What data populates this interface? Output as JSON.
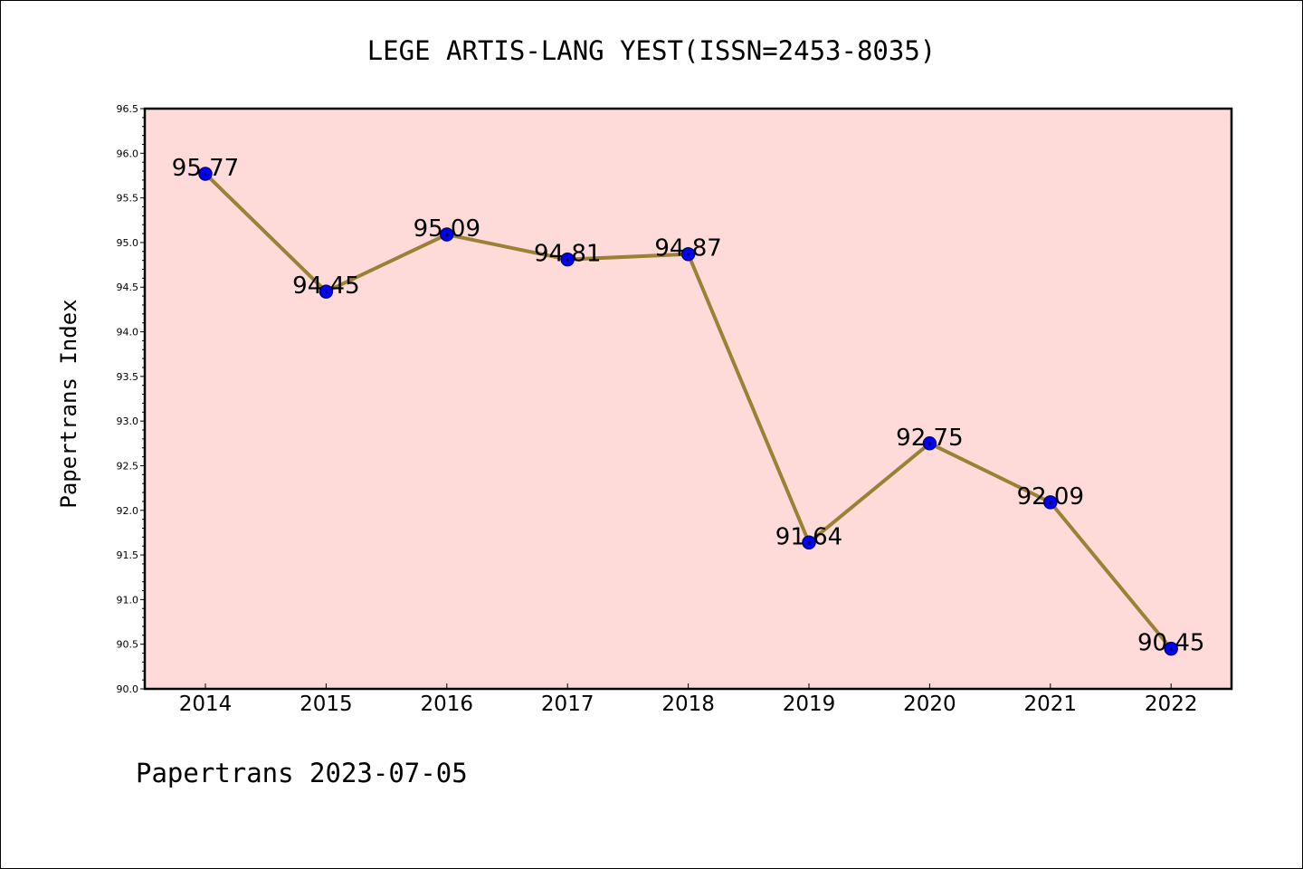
{
  "chart_data": {
    "type": "line",
    "title": "LEGE ARTIS-LANG YEST(ISSN=2453-8035)",
    "xlabel": "",
    "ylabel": "Papertrans Index",
    "categories": [
      "2014",
      "2015",
      "2016",
      "2017",
      "2018",
      "2019",
      "2020",
      "2021",
      "2022"
    ],
    "values": [
      95.77,
      94.45,
      95.09,
      94.81,
      94.87,
      91.64,
      92.75,
      92.09,
      90.45
    ],
    "value_labels": [
      "95.77",
      "94.45",
      "95.09",
      "94.81",
      "94.87",
      "91.64",
      "92.75",
      "92.09",
      "90.45"
    ],
    "ylim": [
      90.0,
      96.5
    ],
    "yticks": [
      "90.0",
      "90.5",
      "91.0",
      "91.5",
      "92.0",
      "92.5",
      "93.0",
      "93.5",
      "94.0",
      "94.5",
      "95.0",
      "95.5",
      "96.0",
      "96.5"
    ],
    "grid": false,
    "legend": "none",
    "colors": {
      "plot_background": "#fedbd8",
      "line": "#9b8035",
      "marker": "#0000ff",
      "marker_edge": "#000080"
    }
  },
  "footer": {
    "text": "Papertrans 2023-07-05"
  }
}
